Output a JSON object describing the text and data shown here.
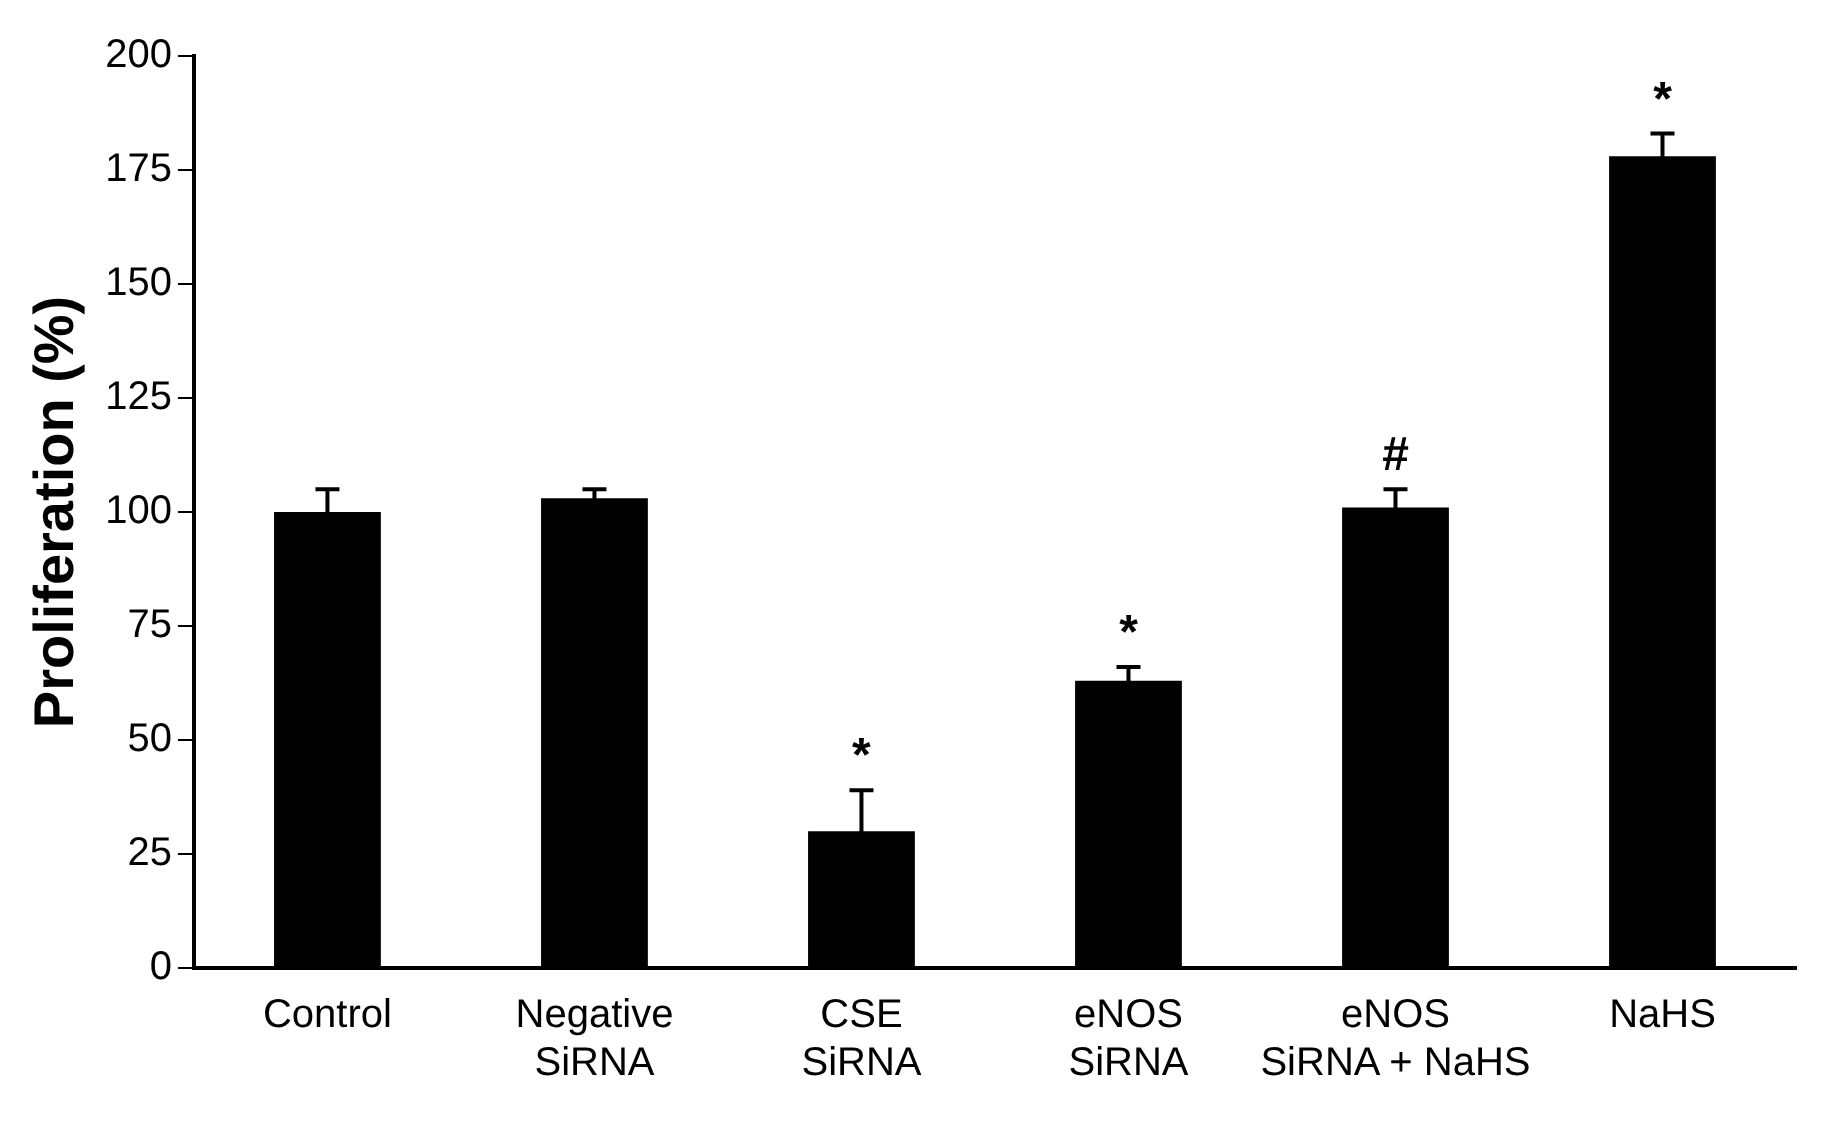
{
  "chart_data": {
    "type": "bar",
    "ylabel": "Proliferation (%)",
    "categories": [
      "Control",
      "Negative\nSiRNA",
      "CSE\nSiRNA",
      "eNOS\nSiRNA",
      "eNOS\nSiRNA + NaHS",
      "NaHS"
    ],
    "values": [
      100,
      103,
      30,
      63,
      101,
      178
    ],
    "errors": [
      5,
      2,
      9,
      3,
      4,
      5
    ],
    "color": "#000000",
    "ylim": [
      0,
      200
    ],
    "yticks": [
      0,
      25,
      50,
      75,
      100,
      125,
      150,
      175,
      200
    ],
    "grid": false,
    "legend": false,
    "annotations": [
      {
        "text": "*",
        "x": "CSE\nSiRNA",
        "y": 39
      },
      {
        "text": "*",
        "x": "eNOS\nSiRNA",
        "y": 66
      },
      {
        "text": "#",
        "x": "eNOS\nSiRNA + NaHS",
        "y": 105
      },
      {
        "text": "*",
        "x": "NaHS",
        "y": 183
      }
    ]
  }
}
